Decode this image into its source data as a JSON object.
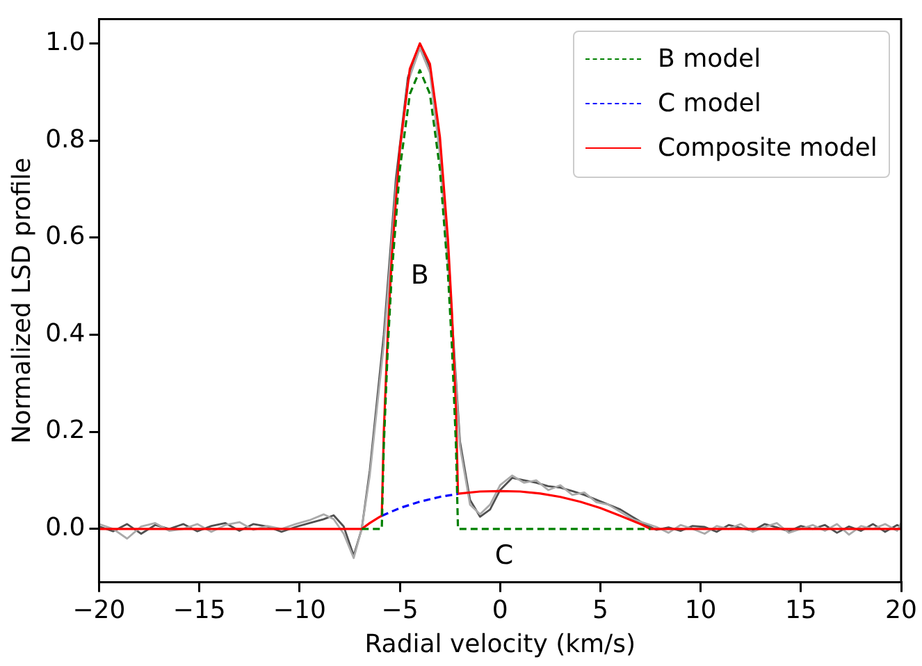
{
  "chart_data": {
    "type": "line",
    "xlabel": "Radial velocity (km/s)",
    "ylabel": "Normalized LSD profile",
    "xlim": [
      -20,
      20
    ],
    "xticks": [
      -20,
      -15,
      -10,
      -5,
      0,
      5,
      10,
      15,
      20
    ],
    "ylim": [
      -0.11,
      1.05
    ],
    "yticks": [
      {
        "value": 0,
        "label": "0.0"
      },
      {
        "value": 0.2,
        "label": "0.2"
      },
      {
        "value": 0.4,
        "label": "0.4"
      },
      {
        "value": 0.6,
        "label": "0.6"
      },
      {
        "value": 0.8,
        "label": "0.8"
      },
      {
        "value": 1,
        "label": "1.0"
      }
    ],
    "grid": false,
    "legend": "top right",
    "marker": "none",
    "annotations": [
      "B",
      "C"
    ],
    "series": [
      {
        "color": "#aaaaaa",
        "x": [
          -20,
          -19.3,
          -18.6,
          -17.9,
          -17.2,
          -16.5,
          -15.8,
          -15.1,
          -14.4,
          -13.7,
          -13,
          -12.3,
          -11.6,
          -10.9,
          -10.2,
          -9.5,
          -8.8,
          -8.3,
          -7.8,
          -7.3,
          -6.9,
          -6.5,
          -5.8,
          -5.2,
          -4.6,
          -4.0,
          -3.5,
          -3.0,
          -2.5,
          -2.0,
          -1.5,
          -1.0,
          -0.5,
          0,
          0.6,
          1.2,
          1.8,
          2.4,
          3,
          3.6,
          4.2,
          4.8,
          5.4,
          6,
          6.6,
          7.2,
          7.8,
          8.4,
          9,
          9.6,
          10.2,
          10.8,
          11.4,
          12,
          12.6,
          13.2,
          13.8,
          14.4,
          15,
          15.6,
          16.2,
          16.8,
          17.4,
          18,
          18.6,
          19.2,
          19.8,
          20
        ],
        "values": [
          0.01,
          0.0,
          -0.02,
          0.005,
          0.012,
          -0.004,
          0.0,
          0.01,
          -0.006,
          0.008,
          0.014,
          -0.002,
          0.006,
          0.0,
          0.01,
          0.018,
          0.03,
          0.02,
          -0.01,
          -0.06,
          0.0,
          0.11,
          0.38,
          0.7,
          0.92,
          0.99,
          0.94,
          0.77,
          0.49,
          0.17,
          0.05,
          0.03,
          0.05,
          0.09,
          0.11,
          0.095,
          0.1,
          0.08,
          0.09,
          0.07,
          0.075,
          0.055,
          0.05,
          0.035,
          0.02,
          0.012,
          0.004,
          -0.008,
          0.008,
          0.0,
          -0.01,
          0.006,
          0.0,
          0.01,
          -0.006,
          0.004,
          0.012,
          -0.008,
          0.0,
          0.008,
          -0.004,
          0.01,
          -0.012,
          0.006,
          0.0,
          0.01,
          -0.004,
          0.012
        ]
      },
      {
        "color": "#505050",
        "x": [
          -20,
          -19.3,
          -18.6,
          -17.9,
          -17.2,
          -16.5,
          -15.8,
          -15.1,
          -14.4,
          -13.7,
          -13,
          -12.3,
          -11.6,
          -10.9,
          -10.2,
          -9.5,
          -8.8,
          -8.3,
          -7.8,
          -7.3,
          -6.9,
          -6.5,
          -5.8,
          -5.2,
          -4.6,
          -4.0,
          -3.5,
          -3.0,
          -2.5,
          -2.0,
          -1.5,
          -1.0,
          -0.5,
          0,
          0.6,
          1.2,
          1.8,
          2.4,
          3,
          3.6,
          4.2,
          4.8,
          5.4,
          6,
          6.6,
          7.2,
          7.8,
          8.4,
          9,
          9.6,
          10.2,
          10.8,
          11.4,
          12,
          12.6,
          13.2,
          13.8,
          14.4,
          15,
          15.6,
          16.2,
          16.8,
          17.4,
          18,
          18.6,
          19.2,
          19.8,
          20
        ],
        "values": [
          0.005,
          -0.005,
          0.01,
          -0.01,
          0.008,
          0.0,
          0.01,
          -0.005,
          0.006,
          0.012,
          -0.004,
          0.01,
          0.005,
          -0.006,
          0.004,
          0.012,
          0.02,
          0.028,
          0.005,
          -0.055,
          0.0,
          0.12,
          0.4,
          0.72,
          0.93,
          1.0,
          0.95,
          0.78,
          0.5,
          0.18,
          0.06,
          0.025,
          0.04,
          0.08,
          0.105,
          0.1,
          0.095,
          0.088,
          0.085,
          0.078,
          0.07,
          0.06,
          0.05,
          0.04,
          0.025,
          0.01,
          -0.002,
          0.003,
          -0.004,
          0.006,
          0.004,
          -0.006,
          0.008,
          0.002,
          -0.004,
          0.01,
          0.003,
          -0.005,
          0.006,
          0.0,
          0.008,
          -0.008,
          0.005,
          -0.004,
          0.01,
          -0.006,
          0.008,
          0.004
        ]
      },
      {
        "name": "B model",
        "color": "#008000",
        "line_style": "dashed",
        "x": [
          -6.9,
          -5.9,
          -5.8,
          -5.6,
          -5.4,
          -5.0,
          -4.5,
          -4.0,
          -3.5,
          -3.0,
          -2.6,
          -2.4,
          -2.2,
          -2.1,
          7.5
        ],
        "values": [
          0,
          0,
          0.171,
          0.374,
          0.526,
          0.741,
          0.896,
          0.945,
          0.896,
          0.741,
          0.526,
          0.374,
          0.171,
          0,
          0
        ]
      },
      {
        "name": "C model",
        "color": "#0000ff",
        "line_style": "dashed",
        "x": [
          -5.9,
          -5,
          -4,
          -3,
          -2.1
        ],
        "values": [
          0.027,
          0.043,
          0.056,
          0.066,
          0.072
        ]
      },
      {
        "name": "Composite model",
        "color": "#ff0000",
        "line_style": "solid",
        "x": [
          -20,
          -6.9,
          -6.5,
          -6.0,
          -5.9,
          -5.8,
          -5.6,
          -5.4,
          -5.0,
          -4.5,
          -4.0,
          -3.5,
          -3.0,
          -2.6,
          -2.4,
          -2.2,
          -2.1,
          -2,
          -1,
          0,
          1,
          2,
          3,
          4,
          5,
          6,
          7,
          7.5,
          20
        ],
        "values": [
          0,
          0,
          0.012,
          0.025,
          0.027,
          0.199,
          0.405,
          0.561,
          0.784,
          0.948,
          1.0,
          0.958,
          0.807,
          0.596,
          0.445,
          0.244,
          0.072,
          0.073,
          0.077,
          0.078,
          0.077,
          0.073,
          0.066,
          0.056,
          0.043,
          0.027,
          0.01,
          0,
          0
        ]
      }
    ]
  }
}
